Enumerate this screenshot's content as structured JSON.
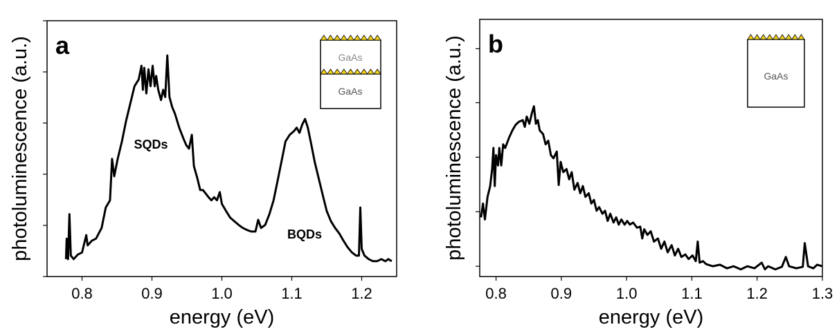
{
  "chart_data": [
    {
      "type": "line",
      "panel_label": "a",
      "xlabel": "energy (eV)",
      "ylabel": "photoluminescence (a.u.)",
      "xlim": [
        0.75,
        1.25
      ],
      "xticks": [
        0.8,
        0.9,
        {
          "value": 1,
          "label": "1.0"
        },
        1.1,
        1.2
      ],
      "ylim": [
        0,
        5
      ],
      "yticks": [
        0,
        1,
        2,
        3,
        4,
        5
      ],
      "annotations": [
        "SQDs",
        "BQDs"
      ],
      "inset_labels": [
        "GaAs",
        "GaAs"
      ],
      "series": [
        {
          "color": "#000000",
          "x": [
            0.777,
            0.778,
            0.78,
            0.782,
            0.784,
            0.788,
            0.794,
            0.8,
            0.806,
            0.808,
            0.814,
            0.82,
            0.828,
            0.834,
            0.84,
            0.843,
            0.846,
            0.851,
            0.857,
            0.863,
            0.869,
            0.875,
            0.881,
            0.885,
            0.887,
            0.889,
            0.892,
            0.895,
            0.898,
            0.901,
            0.904,
            0.906,
            0.909,
            0.913,
            0.916,
            0.919,
            0.922,
            0.925,
            0.929,
            0.933,
            0.939,
            0.945,
            0.949,
            0.953,
            0.957,
            0.96,
            0.965,
            0.969,
            0.973,
            0.977,
            0.981,
            0.985,
            0.989,
            0.993,
            0.997,
            1.0,
            1.006,
            1.012,
            1.018,
            1.024,
            1.03,
            1.036,
            1.042,
            1.048,
            1.052,
            1.056,
            1.062,
            1.068,
            1.074,
            1.08,
            1.086,
            1.091,
            1.097,
            1.103,
            1.107,
            1.111,
            1.115,
            1.119,
            1.123,
            1.127,
            1.133,
            1.139,
            1.145,
            1.15,
            1.156,
            1.162,
            1.168,
            1.174,
            1.18,
            1.186,
            1.192,
            1.196,
            1.198,
            1.2,
            1.204,
            1.21,
            1.216,
            1.222,
            1.228,
            1.234,
            1.238,
            1.243
          ],
          "values": [
            0.34,
            0.74,
            0.34,
            1.22,
            0.41,
            0.34,
            0.43,
            0.47,
            0.81,
            0.61,
            0.7,
            0.74,
            0.95,
            1.35,
            1.49,
            2.3,
            1.96,
            2.3,
            2.64,
            3.04,
            3.38,
            3.72,
            3.85,
            4.12,
            3.65,
            4.08,
            3.58,
            4.05,
            3.72,
            4.12,
            3.72,
            3.92,
            3.65,
            3.45,
            3.65,
            3.51,
            4.32,
            3.51,
            3.31,
            3.18,
            2.91,
            2.7,
            2.57,
            2.5,
            2.77,
            2.16,
            1.92,
            1.69,
            1.69,
            1.62,
            1.55,
            1.49,
            1.55,
            1.49,
            1.65,
            1.42,
            1.28,
            1.15,
            1.08,
            1.01,
            0.95,
            0.91,
            0.88,
            0.88,
            1.11,
            0.95,
            1.01,
            1.22,
            1.49,
            1.89,
            2.3,
            2.64,
            2.77,
            2.84,
            2.91,
            2.81,
            2.97,
            3.08,
            2.91,
            2.64,
            2.23,
            1.89,
            1.55,
            1.28,
            1.08,
            0.95,
            0.84,
            0.7,
            0.57,
            0.47,
            0.41,
            0.41,
            1.35,
            0.54,
            0.41,
            0.34,
            0.3,
            0.3,
            0.34,
            0.3,
            0.34,
            0.3
          ]
        }
      ]
    },
    {
      "type": "line",
      "panel_label": "b",
      "xlabel": "energy (eV)",
      "ylabel": "photoluminescence (a.u.)",
      "xlim": [
        0.775,
        1.3
      ],
      "xticks": [
        0.8,
        0.9,
        {
          "value": 1,
          "label": "1.0"
        },
        1.1,
        1.2,
        1.3
      ],
      "ylim": [
        0,
        5
      ],
      "yticks": [
        0.2,
        1.26,
        2.32,
        3.38,
        4.43
      ],
      "annotations": [],
      "inset_labels": [
        "GaAs"
      ],
      "series": [
        {
          "color": "#000000",
          "x": [
            0.777,
            0.78,
            0.783,
            0.787,
            0.791,
            0.794,
            0.796,
            0.798,
            0.8,
            0.803,
            0.805,
            0.808,
            0.811,
            0.814,
            0.82,
            0.825,
            0.83,
            0.835,
            0.841,
            0.844,
            0.847,
            0.851,
            0.855,
            0.858,
            0.861,
            0.864,
            0.867,
            0.872,
            0.876,
            0.88,
            0.884,
            0.888,
            0.893,
            0.896,
            0.899,
            0.903,
            0.908,
            0.912,
            0.916,
            0.92,
            0.925,
            0.929,
            0.933,
            0.937,
            0.942,
            0.946,
            0.95,
            0.954,
            0.958,
            0.963,
            0.967,
            0.971,
            0.975,
            0.98,
            0.984,
            0.988,
            0.992,
            0.997,
            1.001,
            1.005,
            1.01,
            1.016,
            1.021,
            1.024,
            1.027,
            1.032,
            1.037,
            1.042,
            1.048,
            1.053,
            1.058,
            1.063,
            1.069,
            1.074,
            1.079,
            1.084,
            1.09,
            1.095,
            1.101,
            1.106,
            1.109,
            1.112,
            1.117,
            1.122,
            1.132,
            1.143,
            1.154,
            1.164,
            1.175,
            1.185,
            1.196,
            1.207,
            1.212,
            1.217,
            1.228,
            1.238,
            1.244,
            1.249,
            1.26,
            1.27,
            1.273,
            1.278,
            1.286,
            1.292,
            1.3
          ],
          "values": [
            1.15,
            1.42,
            1.11,
            1.55,
            1.76,
            2.09,
            2.5,
            1.76,
            2.36,
            2.16,
            2.5,
            2.16,
            2.57,
            2.5,
            2.7,
            2.84,
            2.95,
            3.01,
            3.04,
            2.91,
            3.11,
            2.97,
            3.18,
            3.31,
            2.97,
            3.04,
            2.84,
            2.77,
            2.57,
            2.64,
            2.36,
            2.3,
            2.43,
            1.78,
            2.23,
            2.03,
            2.09,
            1.89,
            2.03,
            1.69,
            1.82,
            1.62,
            1.76,
            1.55,
            1.62,
            1.42,
            1.49,
            1.28,
            1.35,
            1.22,
            1.28,
            1.08,
            1.22,
            1.05,
            1.15,
            1.01,
            1.11,
            1.01,
            1.08,
            1.01,
            1.05,
            0.95,
            0.97,
            0.74,
            0.92,
            0.81,
            0.88,
            0.68,
            0.74,
            0.54,
            0.68,
            0.47,
            0.61,
            0.41,
            0.54,
            0.38,
            0.43,
            0.34,
            0.41,
            0.3,
            0.68,
            0.27,
            0.3,
            0.24,
            0.2,
            0.23,
            0.16,
            0.2,
            0.14,
            0.2,
            0.16,
            0.27,
            0.14,
            0.2,
            0.14,
            0.19,
            0.38,
            0.2,
            0.16,
            0.19,
            0.65,
            0.2,
            0.16,
            0.23,
            0.2
          ]
        }
      ]
    }
  ]
}
